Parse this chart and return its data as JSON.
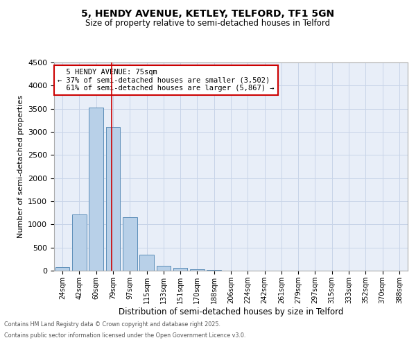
{
  "title1": "5, HENDY AVENUE, KETLEY, TELFORD, TF1 5GN",
  "title2": "Size of property relative to semi-detached houses in Telford",
  "xlabel": "Distribution of semi-detached houses by size in Telford",
  "ylabel": "Number of semi-detached properties",
  "categories": [
    "24sqm",
    "42sqm",
    "60sqm",
    "79sqm",
    "97sqm",
    "115sqm",
    "133sqm",
    "151sqm",
    "170sqm",
    "188sqm",
    "206sqm",
    "224sqm",
    "242sqm",
    "261sqm",
    "279sqm",
    "297sqm",
    "315sqm",
    "333sqm",
    "352sqm",
    "370sqm",
    "388sqm"
  ],
  "values": [
    80,
    1220,
    3520,
    3100,
    1150,
    350,
    110,
    55,
    30,
    10,
    5,
    0,
    0,
    0,
    0,
    0,
    0,
    0,
    0,
    0,
    0
  ],
  "bar_color": "#b8d0e8",
  "bar_edge_color": "#5b8db8",
  "property_sqm": "75sqm",
  "property_label": "5 HENDY AVENUE: 75sqm",
  "smaller_pct": "37%",
  "smaller_count": "3,502",
  "larger_pct": "61%",
  "larger_count": "5,867",
  "ylim": [
    0,
    4500
  ],
  "yticks": [
    0,
    500,
    1000,
    1500,
    2000,
    2500,
    3000,
    3500,
    4000,
    4500
  ],
  "annotation_box_color": "#cc0000",
  "grid_color": "#c8d4e8",
  "bg_color": "#e8eef8",
  "footer1": "Contains HM Land Registry data © Crown copyright and database right 2025.",
  "footer2": "Contains public sector information licensed under the Open Government Licence v3.0."
}
